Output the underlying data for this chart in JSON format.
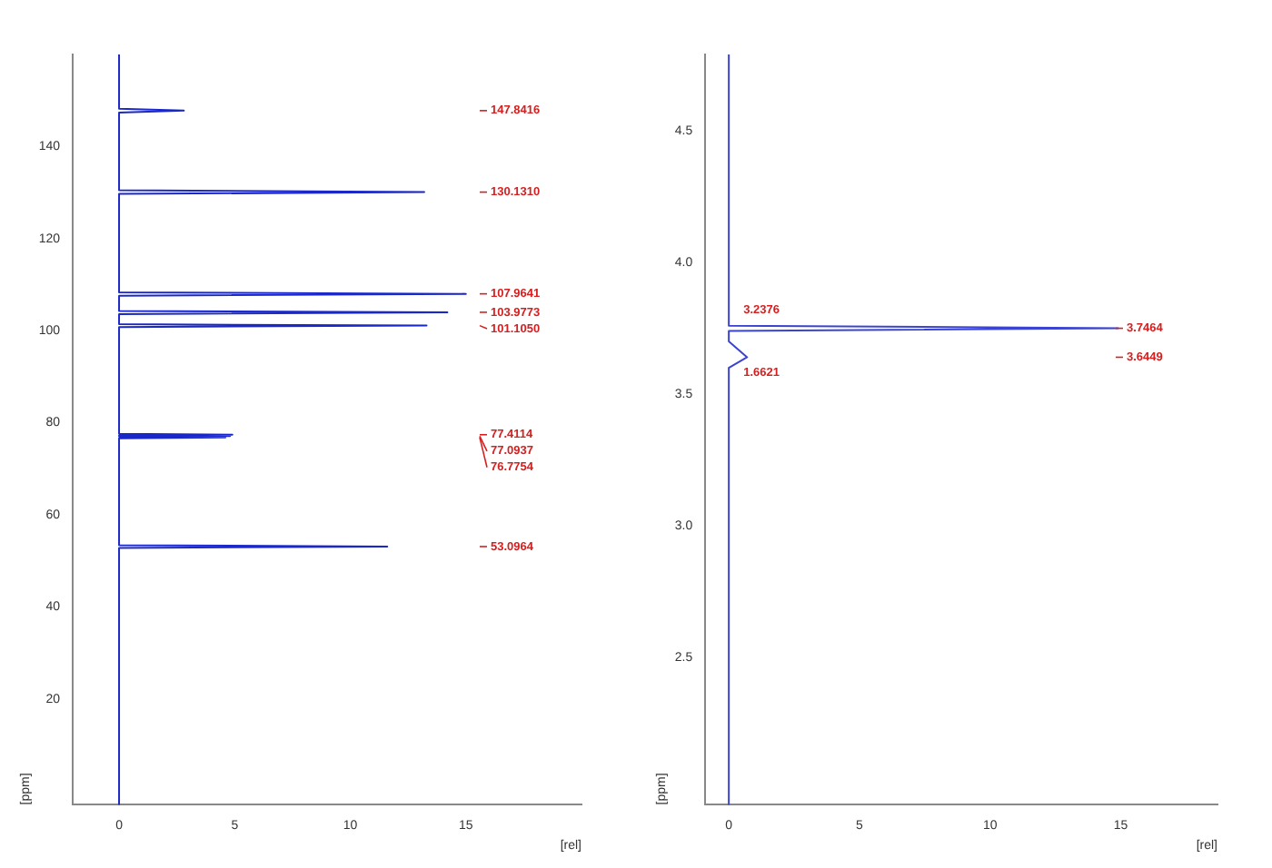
{
  "chart_data": [
    {
      "type": "line",
      "xlabel": "[rel]",
      "ylabel": "[ppm]",
      "xlim": [
        -2,
        20
      ],
      "ylim": [
        -3,
        160
      ],
      "xticks": [
        0,
        5,
        10,
        15
      ],
      "yticks": [
        140,
        120,
        100,
        80,
        60,
        40,
        20
      ],
      "grid": false,
      "legend": false,
      "marker": "none",
      "series": [
        {
          "color": "#1a28c8",
          "x": [
            0,
            0,
            2.8,
            0,
            0,
            13.2,
            0,
            0,
            15.0,
            0,
            0,
            14.2,
            0,
            0,
            13.3,
            0,
            0,
            4.9,
            0,
            4.8,
            0,
            4.6,
            0,
            0,
            11.6,
            0,
            0
          ],
          "values": [
            160,
            148.2,
            147.8,
            147.4,
            130.5,
            130.1,
            129.7,
            108.3,
            108.0,
            107.6,
            104.3,
            104.0,
            103.6,
            101.4,
            101.1,
            100.8,
            77.6,
            77.4,
            77.2,
            77.1,
            77.0,
            76.8,
            76.6,
            53.4,
            53.1,
            52.8,
            -3
          ]
        }
      ],
      "annotations": [
        "147.8416",
        "130.1310",
        "107.9641",
        "103.9773",
        "101.1050",
        "77.4114",
        "77.0937",
        "76.7754",
        "53.0964"
      ]
    },
    {
      "type": "line",
      "xlabel": "[rel]",
      "ylabel": "[ppm]",
      "xlim": [
        -0.9,
        18.7
      ],
      "ylim": [
        1.94,
        4.79
      ],
      "xticks": [
        0,
        5,
        10,
        15
      ],
      "yticks": [
        4.5,
        {
          "value": 4,
          "label": "4.0"
        },
        3.5,
        {
          "value": 3,
          "label": "3.0"
        },
        2.5
      ],
      "grid": false,
      "legend": false,
      "marker": "none",
      "series": [
        {
          "color": "#3a44d0",
          "x": [
            0,
            0,
            14.9,
            0,
            0,
            0.7,
            0,
            0
          ],
          "values": [
            4.79,
            3.76,
            3.75,
            3.74,
            3.7,
            3.64,
            3.6,
            1.94
          ]
        }
      ],
      "annotations": [
        "3.7464",
        "3.6449",
        {
          "text": "3.2376",
          "x": 0,
          "y": 3.82
        },
        {
          "text": "1.6621",
          "x": 0,
          "y": 3.58
        }
      ]
    }
  ]
}
